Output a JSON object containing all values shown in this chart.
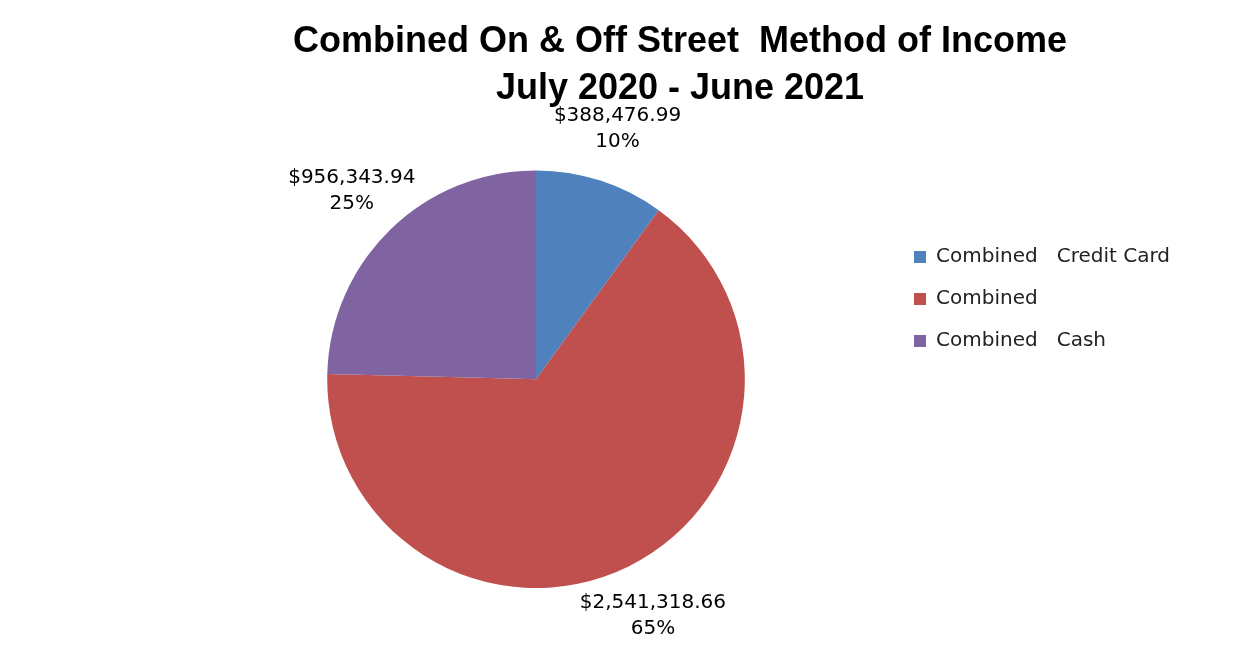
{
  "chart_data": {
    "type": "pie",
    "title": "Combined On & Off Street  Method of Income",
    "subtitle": "July 2020 - June 2021",
    "categories": [
      "Combined   Credit Card",
      "Combined",
      "Combined   Cash"
    ],
    "values": [
      388476.99,
      2541318.66,
      956343.94
    ],
    "colors": [
      "#4f81bd",
      "#c0504d",
      "#8064a2"
    ],
    "value_labels": [
      "$388,476.99\n10%",
      "$2,541,318.66\n65%",
      "$956,343.94\n25%"
    ],
    "legend": "right"
  }
}
